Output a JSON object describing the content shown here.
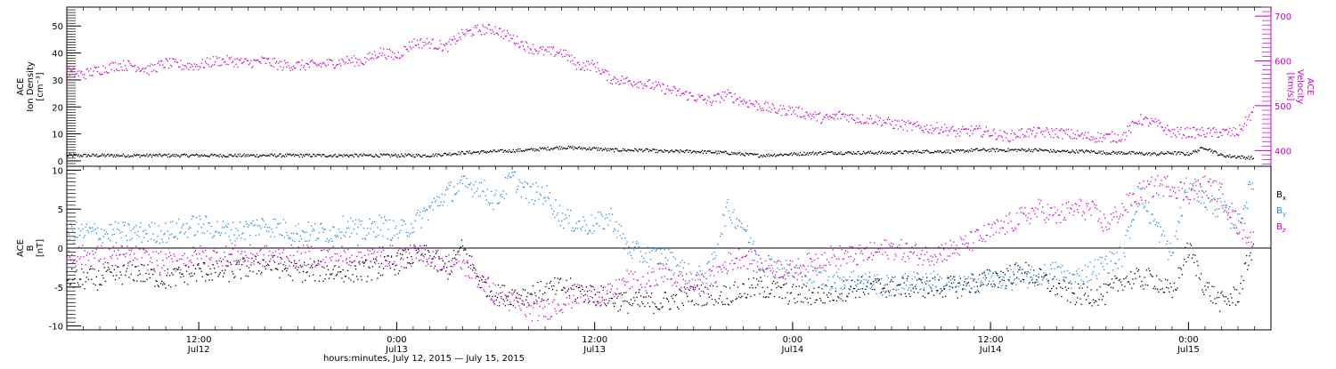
{
  "chart_data": [
    {
      "type": "scatter",
      "panel": "top",
      "ylabel_lines": [
        "ACE",
        "Ion Density",
        "[cm⁻³]"
      ],
      "y2label_lines": [
        "ACE",
        "Velocity",
        "[km/s]"
      ],
      "ylim": [
        -2,
        57
      ],
      "y2lim": [
        365,
        720
      ],
      "yticks": [
        0,
        10,
        20,
        30,
        40,
        50
      ],
      "y2ticks": [
        400,
        500,
        600,
        700
      ],
      "xlim_hours": [
        0,
        73
      ],
      "series": [
        {
          "name": "Ion Density",
          "axis": "left",
          "color": "#000000",
          "x": [
            0,
            3,
            6,
            9,
            12,
            15,
            18,
            20,
            22,
            23,
            24,
            26,
            28,
            30,
            32,
            33,
            35,
            36,
            38,
            40,
            42,
            44,
            46,
            48,
            50,
            52,
            54,
            55,
            57,
            59,
            60,
            62,
            63,
            64,
            66,
            67,
            68,
            69,
            70,
            71,
            72
          ],
          "y": [
            2,
            2,
            2,
            2,
            2,
            2,
            2,
            2,
            2,
            2.5,
            3,
            3.5,
            4,
            5,
            4.5,
            4,
            4,
            3.5,
            3.5,
            3,
            2,
            2.5,
            3,
            3,
            3,
            3.5,
            3.5,
            4,
            4,
            4,
            3.5,
            3.5,
            3,
            3,
            2.5,
            3,
            2.5,
            5,
            2,
            1.5,
            1
          ]
        },
        {
          "name": "Velocity",
          "axis": "right",
          "color": "#cc00cc",
          "x": [
            0,
            1,
            2,
            3,
            4,
            5,
            6,
            7,
            8,
            9,
            10,
            11,
            12,
            13,
            14,
            15,
            16,
            17,
            18,
            19,
            20,
            21,
            22,
            23,
            24,
            25,
            26,
            27,
            28,
            29,
            30,
            31,
            32,
            33,
            34,
            35,
            36,
            37,
            38,
            39,
            40,
            41,
            42,
            43,
            44,
            45,
            46,
            47,
            48,
            49,
            50,
            51,
            52,
            53,
            54,
            55,
            56,
            57,
            58,
            59,
            60,
            61,
            62,
            63,
            64,
            65,
            66,
            67,
            68,
            69,
            70,
            71,
            72
          ],
          "y": [
            575,
            570,
            580,
            590,
            590,
            580,
            595,
            590,
            590,
            600,
            600,
            595,
            600,
            590,
            590,
            590,
            595,
            600,
            600,
            620,
            610,
            640,
            640,
            630,
            660,
            670,
            670,
            650,
            630,
            620,
            620,
            590,
            590,
            560,
            555,
            550,
            540,
            530,
            520,
            510,
            525,
            510,
            500,
            490,
            490,
            480,
            470,
            480,
            470,
            470,
            460,
            455,
            450,
            450,
            440,
            445,
            440,
            430,
            440,
            440,
            440,
            435,
            430,
            430,
            430,
            470,
            460,
            440,
            440,
            440,
            440,
            440,
            490
          ]
        }
      ]
    },
    {
      "type": "scatter",
      "panel": "bottom",
      "ylabel_lines": [
        "ACE",
        "B",
        "[nT]"
      ],
      "ylim": [
        -10.5,
        10.5
      ],
      "yticks": [
        -10,
        -5,
        0,
        5,
        10
      ],
      "xlim_hours": [
        0,
        73
      ],
      "series": [
        {
          "name": "B",
          "sub": "x",
          "color": "#000000",
          "x": [
            0,
            2,
            4,
            6,
            8,
            10,
            12,
            14,
            16,
            18,
            20,
            21,
            22,
            23,
            24,
            25,
            26,
            28,
            30,
            32,
            34,
            36,
            38,
            40,
            42,
            44,
            46,
            48,
            50,
            52,
            54,
            56,
            58,
            60,
            61,
            62,
            63,
            64,
            66,
            67,
            68,
            69,
            70,
            71,
            72
          ],
          "y": [
            -4,
            -4,
            -3,
            -4,
            -3,
            -3,
            -2,
            -3,
            -3,
            -3,
            -2,
            -1,
            -1,
            -3,
            0,
            -4,
            -6,
            -6,
            -5,
            -6,
            -7,
            -7,
            -6,
            -6,
            -5,
            -6,
            -6,
            -5,
            -5,
            -5,
            -5,
            -4,
            -3,
            -5,
            -6,
            -6,
            -6,
            -4,
            -4,
            -6,
            0,
            -5,
            -7,
            -6,
            1
          ]
        },
        {
          "name": "B",
          "sub": "y",
          "color": "#1f88e0",
          "x": [
            0,
            2,
            4,
            6,
            8,
            10,
            12,
            14,
            16,
            17,
            18,
            19,
            20,
            21,
            22,
            23,
            24,
            25,
            26,
            27,
            28,
            29,
            30,
            31,
            32,
            33,
            34,
            35,
            36,
            37,
            38,
            39,
            40,
            41,
            42,
            44,
            46,
            48,
            50,
            52,
            54,
            56,
            58,
            60,
            61,
            62,
            63,
            64,
            65,
            66,
            67,
            68,
            69,
            70,
            71,
            72
          ],
          "y": [
            2,
            2,
            2,
            2,
            3,
            2,
            3,
            2,
            2,
            3,
            2,
            3,
            2,
            3,
            5,
            7,
            8,
            8,
            6,
            9,
            7,
            7,
            4,
            3,
            3,
            4,
            0,
            -1,
            -1,
            -2,
            -4,
            -3,
            5,
            3,
            -2,
            -3,
            -4,
            -4,
            -5,
            -4,
            -5,
            -4,
            -4,
            -3,
            -4,
            -3,
            -2,
            -1,
            7,
            3,
            -1,
            9,
            6,
            5,
            3,
            9
          ]
        },
        {
          "name": "B",
          "sub": "z",
          "color": "#cc00cc",
          "x": [
            0,
            2,
            4,
            6,
            8,
            10,
            12,
            14,
            16,
            18,
            20,
            22,
            23,
            24,
            25,
            26,
            27,
            28,
            29,
            30,
            31,
            32,
            33,
            34,
            35,
            36,
            37,
            38,
            39,
            40,
            41,
            42,
            44,
            46,
            48,
            50,
            52,
            54,
            55,
            56,
            57,
            58,
            59,
            60,
            61,
            62,
            63,
            64,
            65,
            66,
            67,
            68,
            69,
            70,
            71,
            72
          ],
          "y": [
            -1,
            -1,
            -1,
            -2,
            -1,
            -1,
            -1,
            -1,
            -1,
            -1,
            -1,
            -1,
            -2,
            -2,
            -4,
            -6,
            -7,
            -8,
            -8,
            -7,
            -6,
            -6,
            -6,
            -4,
            -5,
            -3,
            -4,
            -5,
            -4,
            -2,
            -1,
            -2,
            -3,
            -1,
            -1,
            0,
            -1,
            0,
            1,
            2,
            3,
            4,
            5,
            4,
            5,
            5,
            3,
            5,
            7,
            8,
            8,
            7,
            8,
            7,
            3,
            1
          ]
        }
      ]
    }
  ],
  "xaxis": {
    "ticks": [
      {
        "h": 8,
        "time": "12:00",
        "date": "Jul12"
      },
      {
        "h": 20,
        "time": "0:00",
        "date": "Jul13"
      },
      {
        "h": 32,
        "time": "12:00",
        "date": "Jul13"
      },
      {
        "h": 44,
        "time": "0:00",
        "date": "Jul14"
      },
      {
        "h": 56,
        "time": "12:00",
        "date": "Jul14"
      },
      {
        "h": 68,
        "time": "0:00",
        "date": "Jul15"
      }
    ],
    "label": "hours:minutes, July 12, 2015 — July 15, 2015"
  }
}
